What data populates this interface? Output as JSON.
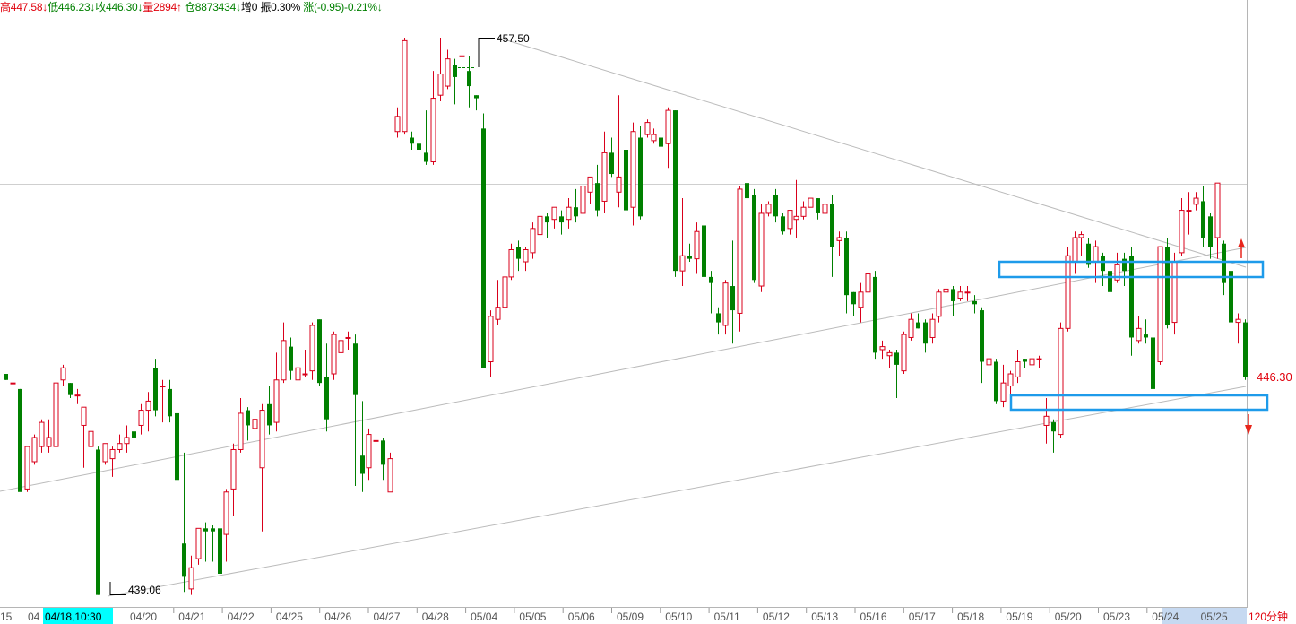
{
  "header": {
    "items": [
      {
        "text": "高447.58↓",
        "color": "red"
      },
      {
        "text": "低446.23↓",
        "color": "green"
      },
      {
        "text": "收446.30↓",
        "color": "green"
      },
      {
        "text": "量2894↑",
        "color": "red"
      },
      {
        "text": "仓8873434↓",
        "color": "green"
      },
      {
        "text": "增0",
        "color": "black"
      },
      {
        "text": "振0.30%",
        "color": "black"
      },
      {
        "text": "涨(-0.95)-0.21%↓",
        "color": "green"
      }
    ]
  },
  "labels": {
    "high_label": "457.50",
    "low_label": "439.06",
    "last_price": "446.30",
    "period": "120分钟",
    "first_tick": "15",
    "cursor_time": "04/18,10:30",
    "cursor_prefix": "04"
  },
  "chart_data": {
    "type": "candlestick",
    "title": "",
    "xlabel": "",
    "ylabel": "",
    "timeframe": "120分钟",
    "last_price": 446.3,
    "marked_high": 457.5,
    "marked_low": 439.06,
    "ylim": [
      437.6,
      459.3
    ],
    "x_tick_labels": [
      "04/20",
      "04/21",
      "04/22",
      "04/25",
      "04/26",
      "04/27",
      "04/28",
      "05/04",
      "05/05",
      "05/06",
      "05/09",
      "05/10",
      "05/11",
      "05/12",
      "05/13",
      "05/16",
      "05/17",
      "05/18",
      "05/19",
      "05/20",
      "05/23",
      "05/24",
      "05/25"
    ],
    "highlighted_tick": "05/24",
    "reference_line": 453.4,
    "candles": [
      [
        446.4,
        446.2,
        446.3,
        446.2
      ],
      [
        446.1,
        446.1,
        446.1,
        446.1
      ],
      [
        445.9,
        442.5,
        445.9,
        442.6
      ],
      [
        442.6,
        444.0,
        444.0,
        442.5
      ],
      [
        443.5,
        444.3,
        444.4,
        443.4
      ],
      [
        444.0,
        444.8,
        444.9,
        443.8
      ],
      [
        444.0,
        444.3,
        444.9,
        443.8
      ],
      [
        444.0,
        446.1,
        446.2,
        444.0
      ],
      [
        446.2,
        446.6,
        446.7,
        446.0
      ],
      [
        446.1,
        445.7,
        446.1,
        445.6
      ],
      [
        445.7,
        445.7,
        445.9,
        445.4
      ],
      [
        444.7,
        445.3,
        445.3,
        443.3
      ],
      [
        444.0,
        444.5,
        444.8,
        443.7
      ],
      [
        443.9,
        439.1,
        444.0,
        439.1
      ],
      [
        443.5,
        444.1,
        444.1,
        443.4
      ],
      [
        443.6,
        443.9,
        444.0,
        443.0
      ],
      [
        443.9,
        444.1,
        444.4,
        443.8
      ],
      [
        444.1,
        444.3,
        444.7,
        443.8
      ],
      [
        444.5,
        444.3,
        445.0,
        444.0
      ],
      [
        444.7,
        445.2,
        445.4,
        444.4
      ],
      [
        445.2,
        445.5,
        445.8,
        444.5
      ],
      [
        446.6,
        445.2,
        446.9,
        445.0
      ],
      [
        446.0,
        446.0,
        446.2,
        444.8
      ],
      [
        445.9,
        445.0,
        446.2,
        444.8
      ],
      [
        445.1,
        442.9,
        445.2,
        442.6
      ],
      [
        440.8,
        439.7,
        443.8,
        439.2
      ],
      [
        439.3,
        440.0,
        440.4,
        439.1
      ],
      [
        440.3,
        441.3,
        441.3,
        440.1
      ],
      [
        441.3,
        441.2,
        441.5,
        440.2
      ],
      [
        441.3,
        441.2,
        441.4,
        440.2
      ],
      [
        441.3,
        439.8,
        441.6,
        439.7
      ],
      [
        441.1,
        442.5,
        442.6,
        440.2
      ],
      [
        442.6,
        443.9,
        444.1,
        441.7
      ],
      [
        443.9,
        445.1,
        445.6,
        443.8
      ],
      [
        445.2,
        444.7,
        445.3,
        444.2
      ],
      [
        444.6,
        444.9,
        445.2,
        444.6
      ],
      [
        443.3,
        445.2,
        445.4,
        441.2
      ],
      [
        445.4,
        444.7,
        446.0,
        444.4
      ],
      [
        444.8,
        446.2,
        447.1,
        444.5
      ],
      [
        446.2,
        447.5,
        448.1,
        446.1
      ],
      [
        447.3,
        446.5,
        447.6,
        446.2
      ],
      [
        446.2,
        446.6,
        446.8,
        446.0
      ],
      [
        446.4,
        446.4,
        447.2,
        446.3
      ],
      [
        446.5,
        448.0,
        448.1,
        446.2
      ],
      [
        448.2,
        446.1,
        448.2,
        446.0
      ],
      [
        446.3,
        444.9,
        447.4,
        444.5
      ],
      [
        446.4,
        447.7,
        447.8,
        446.2
      ],
      [
        447.1,
        447.5,
        447.8,
        446.6
      ],
      [
        447.6,
        447.6,
        447.8,
        447.2
      ],
      [
        447.4,
        445.7,
        447.7,
        442.7
      ],
      [
        443.7,
        443.1,
        445.5,
        442.5
      ],
      [
        443.3,
        444.4,
        444.6,
        442.9
      ],
      [
        444.2,
        444.2,
        444.3,
        443.3
      ],
      [
        444.2,
        443.4,
        444.3,
        442.9
      ],
      [
        442.5,
        443.6,
        443.8,
        443.5
      ],
      [
        454.4,
        454.9,
        455.2,
        454.2
      ],
      [
        454.4,
        457.4,
        457.5,
        454.3
      ],
      [
        454.2,
        454.0,
        454.4,
        453.8
      ],
      [
        454.0,
        453.8,
        454.2,
        453.6
      ],
      [
        453.7,
        453.4,
        455.1,
        453.3
      ],
      [
        453.4,
        455.5,
        456.4,
        453.3
      ],
      [
        455.6,
        456.3,
        457.5,
        455.4
      ],
      [
        455.9,
        456.8,
        457.1,
        455.8
      ],
      [
        456.6,
        456.2,
        456.8,
        455.3
      ],
      [
        456.9,
        456.9,
        457.1,
        456.6
      ],
      [
        456.4,
        455.9,
        456.9,
        455.2
      ],
      [
        455.6,
        455.5,
        455.6,
        455.1
      ],
      [
        454.5,
        446.6,
        455.0,
        446.6
      ],
      [
        446.8,
        448.3,
        448.5,
        446.3
      ],
      [
        448.2,
        448.6,
        449.5,
        448.0
      ],
      [
        448.6,
        449.6,
        450.2,
        448.4
      ],
      [
        449.6,
        450.5,
        450.7,
        449.5
      ],
      [
        450.6,
        450.2,
        450.8,
        449.8
      ],
      [
        450.1,
        450.5,
        450.6,
        449.8
      ],
      [
        450.4,
        451.2,
        451.4,
        450.2
      ],
      [
        451.0,
        451.6,
        451.7,
        450.8
      ],
      [
        451.6,
        451.4,
        451.7,
        450.9
      ],
      [
        451.5,
        451.9,
        451.9,
        451.2
      ],
      [
        451.6,
        451.4,
        451.8,
        451.0
      ],
      [
        451.5,
        451.9,
        452.2,
        451.2
      ],
      [
        451.9,
        451.6,
        452.5,
        451.4
      ],
      [
        451.7,
        452.6,
        453.1,
        451.6
      ],
      [
        452.4,
        452.9,
        452.9,
        452.0
      ],
      [
        452.7,
        451.8,
        453.3,
        451.6
      ],
      [
        452.1,
        453.7,
        454.4,
        451.7
      ],
      [
        453.7,
        453.0,
        454.2,
        452.9
      ],
      [
        452.4,
        452.9,
        455.6,
        451.9
      ],
      [
        453.8,
        451.8,
        453.8,
        451.4
      ],
      [
        451.9,
        454.4,
        454.7,
        451.3
      ],
      [
        454.2,
        451.6,
        454.6,
        451.5
      ],
      [
        454.3,
        454.7,
        454.8,
        454.2
      ],
      [
        454.1,
        454.3,
        454.5,
        454.0
      ],
      [
        454.2,
        453.9,
        454.4,
        453.7
      ],
      [
        454.0,
        455.1,
        455.2,
        453.2
      ],
      [
        455.1,
        449.8,
        455.1,
        449.6
      ],
      [
        449.8,
        450.3,
        452.2,
        449.3
      ],
      [
        450.3,
        450.2,
        450.7,
        450.1
      ],
      [
        450.2,
        451.1,
        451.4,
        449.7
      ],
      [
        451.3,
        449.6,
        451.4,
        449.6
      ],
      [
        449.6,
        449.4,
        449.8,
        448.4
      ],
      [
        448.4,
        448.1,
        448.6,
        447.7
      ],
      [
        448.0,
        449.4,
        449.5,
        447.7
      ],
      [
        449.3,
        448.5,
        450.8,
        447.4
      ],
      [
        448.4,
        452.5,
        452.6,
        447.8
      ],
      [
        452.7,
        452.2,
        452.7,
        451.9
      ],
      [
        452.3,
        449.5,
        452.5,
        449.4
      ],
      [
        449.3,
        451.7,
        452.0,
        449.1
      ],
      [
        451.7,
        452.0,
        452.1,
        451.6
      ],
      [
        452.3,
        451.6,
        452.5,
        451.4
      ],
      [
        451.6,
        451.1,
        451.7,
        451.0
      ],
      [
        451.2,
        451.8,
        451.8,
        451.0
      ],
      [
        451.5,
        451.6,
        452.8,
        450.9
      ],
      [
        451.6,
        451.9,
        452.1,
        451.5
      ],
      [
        451.9,
        452.2,
        452.2,
        451.9
      ],
      [
        452.2,
        451.7,
        452.2,
        451.5
      ],
      [
        451.7,
        452.0,
        452.1,
        451.7
      ],
      [
        452.0,
        450.6,
        452.3,
        449.6
      ],
      [
        450.8,
        450.9,
        451.1,
        450.3
      ],
      [
        450.9,
        449.0,
        451.1,
        448.4
      ],
      [
        449.1,
        448.7,
        449.1,
        448.3
      ],
      [
        448.6,
        449.1,
        449.4,
        448.1
      ],
      [
        449.1,
        449.7,
        449.8,
        448.9
      ],
      [
        449.6,
        447.1,
        449.8,
        446.9
      ],
      [
        447.2,
        447.3,
        447.5,
        446.9
      ],
      [
        447.0,
        447.1,
        447.2,
        446.6
      ],
      [
        447.1,
        446.7,
        447.2,
        445.6
      ],
      [
        446.5,
        447.7,
        447.8,
        446.4
      ],
      [
        447.6,
        448.2,
        448.4,
        447.5
      ],
      [
        448.1,
        447.9,
        448.4,
        447.9
      ],
      [
        448.1,
        447.4,
        448.2,
        447.1
      ],
      [
        447.6,
        448.2,
        448.4,
        447.4
      ],
      [
        448.3,
        449.1,
        449.2,
        448.1
      ],
      [
        449.1,
        449.2,
        449.2,
        448.9
      ],
      [
        449.2,
        448.8,
        449.3,
        448.3
      ],
      [
        448.9,
        449.1,
        449.3,
        448.8
      ],
      [
        449.1,
        449.1,
        449.3,
        448.8
      ],
      [
        448.8,
        448.7,
        449.0,
        448.4
      ],
      [
        448.5,
        446.8,
        448.6,
        446.1
      ],
      [
        446.7,
        446.9,
        447.0,
        446.6
      ],
      [
        446.8,
        445.5,
        446.9,
        445.4
      ],
      [
        445.5,
        446.1,
        446.7,
        445.3
      ],
      [
        446.0,
        446.4,
        446.5,
        445.4
      ],
      [
        446.3,
        446.8,
        447.2,
        446.1
      ],
      [
        446.9,
        446.8,
        446.9,
        446.6
      ],
      [
        446.7,
        446.9,
        446.9,
        446.5
      ],
      [
        446.9,
        446.9,
        447.0,
        446.6
      ],
      [
        444.7,
        445.0,
        445.6,
        444.1
      ],
      [
        444.8,
        444.5,
        444.9,
        443.8
      ],
      [
        444.4,
        447.9,
        448.1,
        444.3
      ],
      [
        447.9,
        450.3,
        450.6,
        447.8
      ],
      [
        450.1,
        450.9,
        451.1,
        449.7
      ],
      [
        450.9,
        451.0,
        451.1,
        450.3
      ],
      [
        450.7,
        450.0,
        450.9,
        449.9
      ],
      [
        450.1,
        450.6,
        450.8,
        449.4
      ],
      [
        450.3,
        449.8,
        450.4,
        449.3
      ],
      [
        449.8,
        449.1,
        450.0,
        448.7
      ],
      [
        449.5,
        450.0,
        450.4,
        449.4
      ],
      [
        450.2,
        449.8,
        450.4,
        449.3
      ],
      [
        450.3,
        447.6,
        450.6,
        447.0
      ],
      [
        447.5,
        447.9,
        448.3,
        447.4
      ],
      [
        447.7,
        447.6,
        448.2,
        447.4
      ],
      [
        447.6,
        445.9,
        447.9,
        445.8
      ],
      [
        446.8,
        450.6,
        450.6,
        446.7
      ],
      [
        450.6,
        448.0,
        450.9,
        447.9
      ],
      [
        448.1,
        450.1,
        450.4,
        447.7
      ],
      [
        450.4,
        451.8,
        452.2,
        450.3
      ],
      [
        451.8,
        451.8,
        452.4,
        451.0
      ],
      [
        452.0,
        452.2,
        452.4,
        451.8
      ],
      [
        452.1,
        450.9,
        452.6,
        450.6
      ],
      [
        451.6,
        450.6,
        451.7,
        450.2
      ],
      [
        450.9,
        452.7,
        452.7,
        450.2
      ],
      [
        450.7,
        449.4,
        450.8,
        449.0
      ],
      [
        449.8,
        448.1,
        449.9,
        447.5
      ],
      [
        448.1,
        448.2,
        448.4,
        447.4
      ],
      [
        448.1,
        446.3,
        448.2,
        446.2
      ]
    ]
  }
}
